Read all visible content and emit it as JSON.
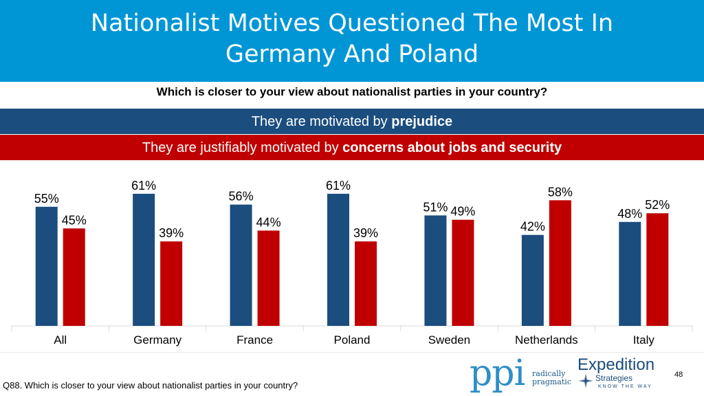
{
  "header": {
    "title_line1": "Nationalist Motives Questioned The Most In",
    "title_line2": "Germany And Poland"
  },
  "question": "Which is closer to your view about nationalist parties in your country?",
  "legend": {
    "prejudice_prefix": "They are motivated by ",
    "prejudice_bold": "prejudice",
    "concerns_prefix": "They are justifiably motivated by ",
    "concerns_bold": "concerns about jobs and security"
  },
  "colors": {
    "title_band": "#0096d6",
    "prejudice": "#1b4d7e",
    "concerns": "#c00000"
  },
  "chart_data": {
    "type": "bar",
    "categories": [
      "All",
      "Germany",
      "France",
      "Poland",
      "Sweden",
      "Netherlands",
      "Italy"
    ],
    "series": [
      {
        "name": "They are motivated by prejudice",
        "values": [
          55,
          61,
          56,
          61,
          51,
          42,
          48
        ]
      },
      {
        "name": "They are justifiably motivated by concerns about jobs and security",
        "values": [
          45,
          39,
          44,
          39,
          49,
          58,
          52
        ]
      }
    ],
    "value_suffix": "%",
    "ylim": [
      0,
      70
    ],
    "grid": false,
    "legend_placement": "top"
  },
  "footer": {
    "footnote": "Q88. Which is closer to your view about nationalist parties in your country?",
    "page_number": "48",
    "logo1": {
      "text": "ppi",
      "tagline_line1": "radically",
      "tagline_line2": "pragmatic"
    },
    "logo2": {
      "name": "Expedition",
      "sub": "Strategies",
      "motto": "KNOW THE WAY"
    }
  }
}
